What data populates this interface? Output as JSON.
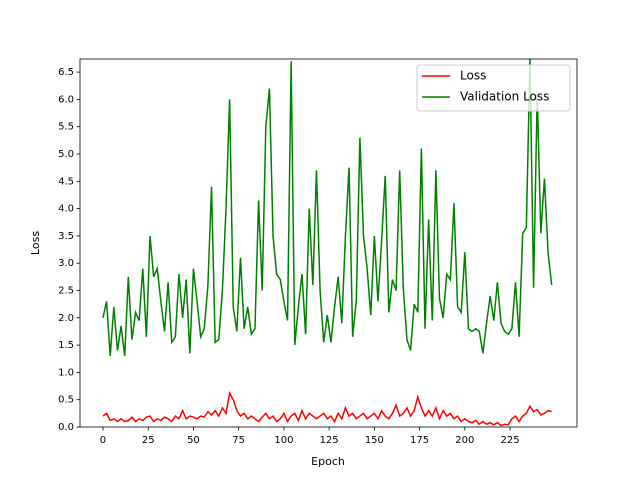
{
  "chart_data": {
    "type": "line",
    "x_label": "Epoch",
    "y_label": "Loss",
    "x": [
      0,
      2,
      4,
      6,
      8,
      10,
      12,
      14,
      16,
      18,
      20,
      22,
      24,
      26,
      28,
      30,
      32,
      34,
      36,
      38,
      40,
      42,
      44,
      46,
      48,
      50,
      52,
      54,
      56,
      58,
      60,
      62,
      64,
      66,
      68,
      70,
      72,
      74,
      76,
      78,
      80,
      82,
      84,
      86,
      88,
      90,
      92,
      94,
      96,
      98,
      100,
      102,
      104,
      106,
      108,
      110,
      112,
      114,
      116,
      118,
      120,
      122,
      124,
      126,
      128,
      130,
      132,
      134,
      136,
      138,
      140,
      142,
      144,
      146,
      148,
      150,
      152,
      154,
      156,
      158,
      160,
      162,
      164,
      166,
      168,
      170,
      172,
      174,
      176,
      178,
      180,
      182,
      184,
      186,
      188,
      190,
      192,
      194,
      196,
      198,
      200,
      202,
      204,
      206,
      208,
      210,
      212,
      214,
      216,
      218,
      220,
      222,
      224,
      226,
      228,
      230,
      232,
      234,
      236,
      238,
      240,
      242,
      244,
      246,
      248
    ],
    "series": [
      {
        "name": "Loss",
        "color": "#ff0000",
        "values": [
          0.2,
          0.25,
          0.12,
          0.15,
          0.1,
          0.15,
          0.1,
          0.12,
          0.18,
          0.1,
          0.15,
          0.12,
          0.18,
          0.2,
          0.1,
          0.15,
          0.12,
          0.18,
          0.15,
          0.1,
          0.2,
          0.15,
          0.3,
          0.15,
          0.2,
          0.18,
          0.15,
          0.2,
          0.18,
          0.28,
          0.22,
          0.3,
          0.2,
          0.35,
          0.25,
          0.62,
          0.5,
          0.3,
          0.2,
          0.25,
          0.15,
          0.2,
          0.15,
          0.1,
          0.18,
          0.25,
          0.15,
          0.2,
          0.1,
          0.15,
          0.25,
          0.1,
          0.2,
          0.25,
          0.12,
          0.3,
          0.15,
          0.25,
          0.2,
          0.15,
          0.2,
          0.25,
          0.15,
          0.2,
          0.1,
          0.25,
          0.15,
          0.35,
          0.2,
          0.25,
          0.15,
          0.2,
          0.25,
          0.15,
          0.2,
          0.25,
          0.15,
          0.3,
          0.2,
          0.15,
          0.25,
          0.4,
          0.2,
          0.25,
          0.35,
          0.2,
          0.3,
          0.55,
          0.35,
          0.2,
          0.3,
          0.2,
          0.35,
          0.15,
          0.3,
          0.2,
          0.25,
          0.15,
          0.2,
          0.1,
          0.15,
          0.1,
          0.08,
          0.12,
          0.05,
          0.1,
          0.05,
          0.08,
          0.04,
          0.08,
          0.03,
          0.05,
          0.04,
          0.15,
          0.2,
          0.1,
          0.2,
          0.25,
          0.38,
          0.28,
          0.32,
          0.22,
          0.25,
          0.3,
          0.28
        ]
      },
      {
        "name": "Validation Loss",
        "color": "#008000",
        "values": [
          2.0,
          2.3,
          1.3,
          2.2,
          1.4,
          1.85,
          1.3,
          2.75,
          1.6,
          2.1,
          1.95,
          2.9,
          1.65,
          3.5,
          2.75,
          2.9,
          2.3,
          1.75,
          2.65,
          1.55,
          1.65,
          2.8,
          2.0,
          2.7,
          1.35,
          2.9,
          2.3,
          1.65,
          1.8,
          2.6,
          4.4,
          1.55,
          1.6,
          2.5,
          4.0,
          6.0,
          2.2,
          1.75,
          3.1,
          1.8,
          2.2,
          1.7,
          1.8,
          4.15,
          2.5,
          5.5,
          6.2,
          3.5,
          2.8,
          2.7,
          2.3,
          1.95,
          6.7,
          1.5,
          2.2,
          2.8,
          1.7,
          4.0,
          2.6,
          4.7,
          2.5,
          1.55,
          2.05,
          1.55,
          2.2,
          2.75,
          1.9,
          3.5,
          4.75,
          1.65,
          2.3,
          5.3,
          3.5,
          2.9,
          2.05,
          3.5,
          2.3,
          3.4,
          4.6,
          2.1,
          2.7,
          2.5,
          4.7,
          2.55,
          1.6,
          1.4,
          2.25,
          2.1,
          5.1,
          1.8,
          3.8,
          1.95,
          4.7,
          2.35,
          2.0,
          2.8,
          2.7,
          4.1,
          2.2,
          2.1,
          3.2,
          1.8,
          1.75,
          1.8,
          1.75,
          1.35,
          1.9,
          2.4,
          1.95,
          2.65,
          1.9,
          1.75,
          1.7,
          1.8,
          2.65,
          1.65,
          3.55,
          3.65,
          6.75,
          2.55,
          6.1,
          3.55,
          4.55,
          3.2,
          2.6
        ]
      }
    ],
    "xlim": [
      -12.7,
      262
    ],
    "ylim": [
      0,
      6.74
    ],
    "xticks": [
      0,
      25,
      50,
      75,
      100,
      125,
      150,
      175,
      200,
      225
    ],
    "yticks": [
      {
        "value": 0,
        "label": "0.0"
      },
      0.5,
      {
        "value": 1,
        "label": "1.0"
      },
      1.5,
      {
        "value": 2,
        "label": "2.0"
      },
      2.5,
      {
        "value": 3,
        "label": "3.0"
      },
      3.5,
      {
        "value": 4,
        "label": "4.0"
      },
      4.5,
      {
        "value": 5,
        "label": "5.0"
      },
      5.5,
      {
        "value": 6,
        "label": "6.0"
      },
      6.5
    ],
    "grid": false,
    "legend": "upper right"
  }
}
